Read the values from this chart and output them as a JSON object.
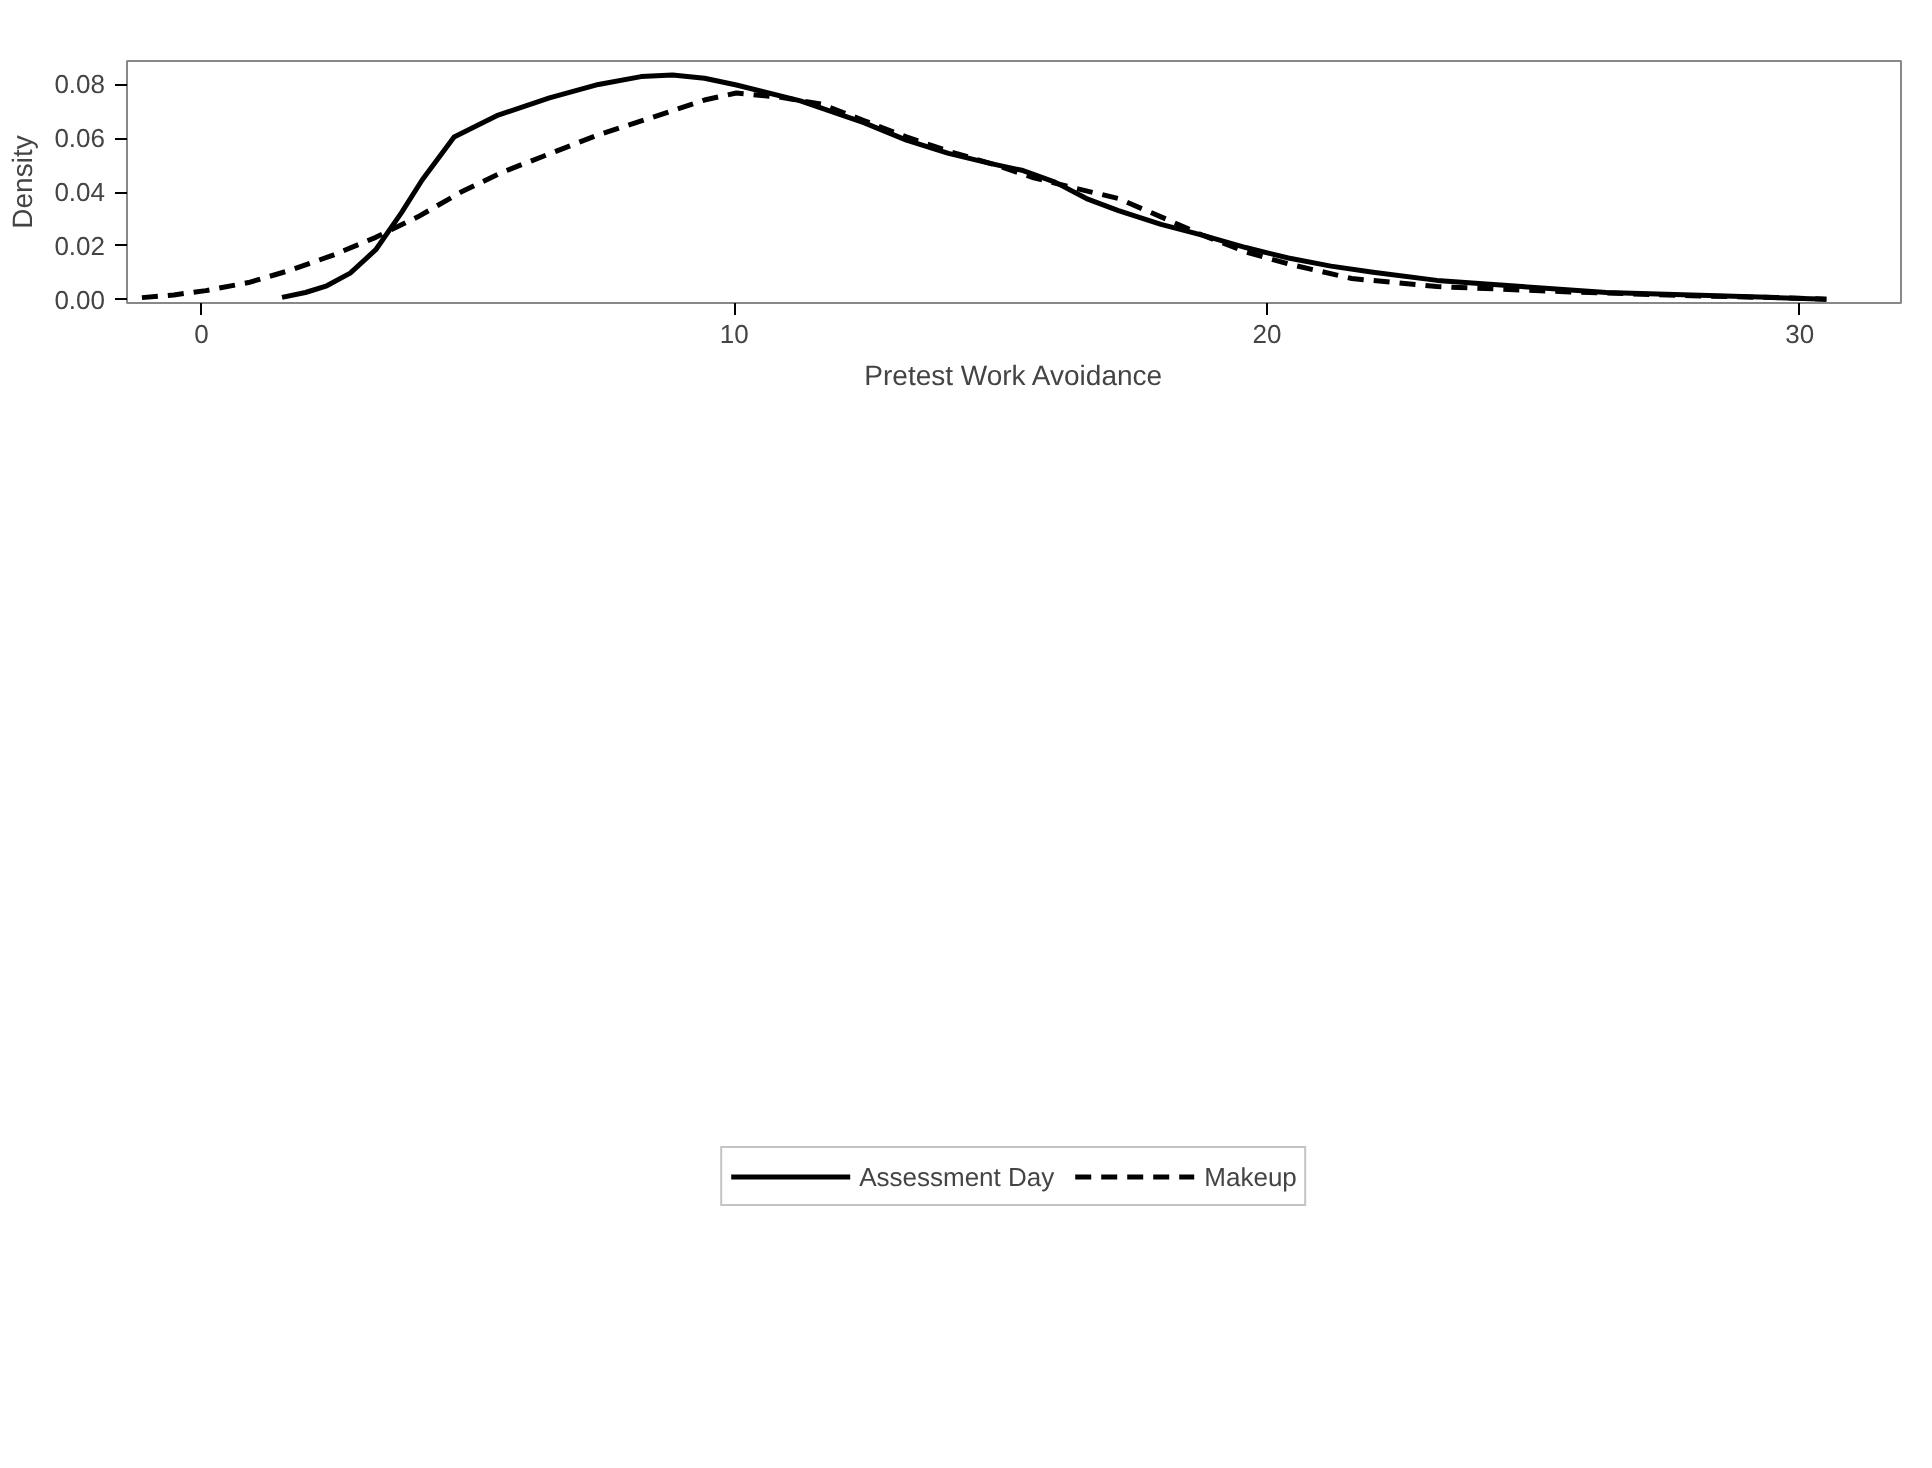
{
  "chart_data": {
    "type": "line",
    "xlabel": "Pretest Work Avoidance",
    "ylabel": "Density",
    "xlim": [
      -1.4,
      31.9
    ],
    "ylim": [
      -0.0012,
      0.0887
    ],
    "xticks": [
      0,
      10,
      20,
      30
    ],
    "yticks": [
      {
        "value": 0,
        "label": "0.00"
      },
      {
        "value": 0.02,
        "label": "0.02"
      },
      {
        "value": 0.04,
        "label": "0.04"
      },
      {
        "value": 0.06,
        "label": "0.06"
      },
      {
        "value": 0.08,
        "label": "0.08"
      }
    ],
    "grid": false,
    "legend": "bottom",
    "marker": "none",
    "series": [
      {
        "name": "Assessment Day",
        "color": "#000000",
        "line_style": "solid",
        "x": [
          1.51,
          1.95,
          2.35,
          2.79,
          3.27,
          3.75,
          4.14,
          4.74,
          5.54,
          6.53,
          7.45,
          8.25,
          8.84,
          9.44,
          10.04,
          11.24,
          12.43,
          13.23,
          14.02,
          14.82,
          15.42,
          16.02,
          16.61,
          17.21,
          18.01,
          18.8,
          19.6,
          20.4,
          21.2,
          21.99,
          23.19,
          24.78,
          26.37,
          27.97,
          29.56,
          30.5
        ],
        "values": [
          0.0009,
          0.0027,
          0.0052,
          0.0099,
          0.0186,
          0.0323,
          0.0445,
          0.0605,
          0.0684,
          0.075,
          0.08,
          0.0829,
          0.0835,
          0.0823,
          0.0798,
          0.0739,
          0.0658,
          0.0593,
          0.0544,
          0.0506,
          0.048,
          0.0437,
          0.0376,
          0.0331,
          0.028,
          0.0239,
          0.0194,
          0.0155,
          0.0125,
          0.0102,
          0.0072,
          0.0049,
          0.0027,
          0.0018,
          0.0008,
          0.0002
        ]
      },
      {
        "name": "Makeup",
        "color": "#000000",
        "line_style": "dashed",
        "x": [
          -1.12,
          -0.52,
          0.08,
          0.88,
          1.67,
          2.47,
          3.27,
          4.06,
          4.86,
          5.66,
          6.45,
          7.45,
          8.45,
          9.44,
          10.04,
          10.84,
          11.63,
          12.43,
          13.23,
          14.02,
          14.82,
          15.62,
          16.41,
          17.21,
          18.01,
          18.8,
          19.6,
          20.4,
          21.59,
          23.19,
          25.58,
          27.97,
          29.96,
          30.5
        ],
        "values": [
          0.0008,
          0.0018,
          0.0034,
          0.0064,
          0.011,
          0.0166,
          0.0232,
          0.0308,
          0.0399,
          0.0475,
          0.0536,
          0.0613,
          0.0677,
          0.0742,
          0.0768,
          0.0753,
          0.0727,
          0.0666,
          0.0605,
          0.0552,
          0.0506,
          0.0453,
          0.0414,
          0.0376,
          0.0308,
          0.0239,
          0.0178,
          0.0133,
          0.0079,
          0.0049,
          0.003,
          0.0015,
          0.0006,
          0.0002
        ]
      }
    ]
  }
}
